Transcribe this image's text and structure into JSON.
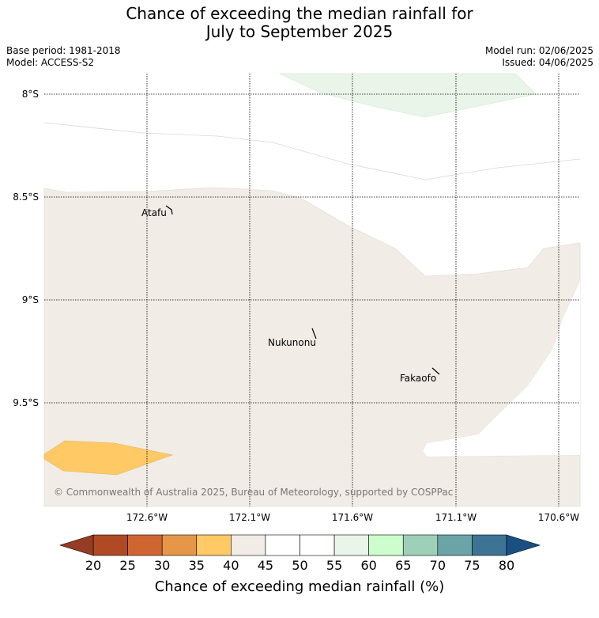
{
  "title_line1": "Chance of exceeding the median rainfall for",
  "title_line2": "July to September 2025",
  "meta_left": [
    "Base period: 1981-2018",
    "Model: ACCESS-S2"
  ],
  "meta_right": [
    "Model run: 02/06/2025",
    "Issued: 04/06/2025"
  ],
  "lat_labels": [
    "8°S",
    "8.5°S",
    "9°S",
    "9.5°S"
  ],
  "lon_labels": [
    "172.6°W",
    "172.1°W",
    "171.6°W",
    "171.1°W",
    "170.6°W"
  ],
  "places": [
    "Atafu",
    "Nukunonu",
    "Fakaofo"
  ],
  "copyright": "© Commonwealth of Australia 2025, Bureau of Meteorology, supported by COSPPac",
  "colorbar": {
    "labels": [
      "20",
      "25",
      "30",
      "35",
      "40",
      "45",
      "50",
      "55",
      "60",
      "65",
      "70",
      "75",
      "80"
    ],
    "colors": [
      "#b04a25",
      "#cf6632",
      "#e59649",
      "#ffc966",
      "#f1ece6",
      "#ffffff",
      "#ffffff",
      "#eaf5ea",
      "#cdfccd",
      "#9ed0b9",
      "#6ba4a7",
      "#3d7494"
    ],
    "under_color": "#963c22",
    "over_color": "#1a4f84",
    "title": "Chance of exceeding median rainfall (%)"
  },
  "map_regions": [
    {
      "category": "40-45",
      "color": "#f1ece6"
    },
    {
      "category": "55-60",
      "color": "#eaf5ea"
    },
    {
      "category": "35-40",
      "color": "#ffc966"
    }
  ]
}
